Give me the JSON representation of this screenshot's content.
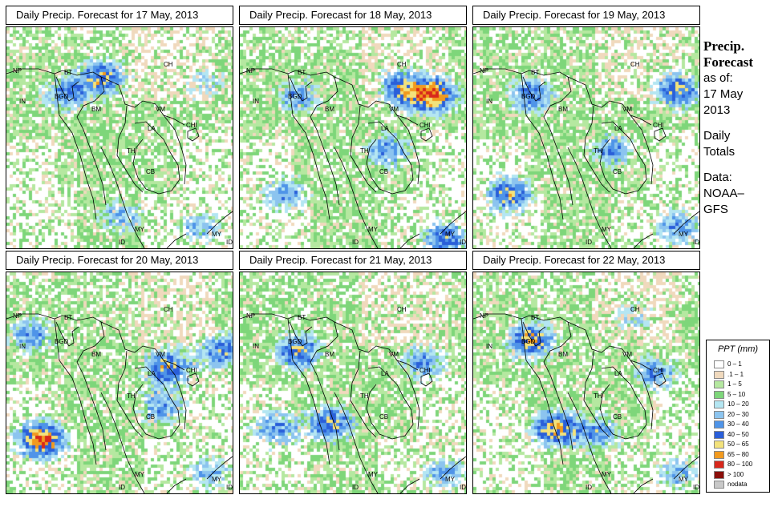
{
  "title_prefix": "Daily Precip. Forecast for",
  "panels": [
    {
      "title": "Daily Precip. Forecast for  17 May, 2013",
      "seed": 17
    },
    {
      "title": "Daily Precip. Forecast for  18 May, 2013",
      "seed": 18
    },
    {
      "title": "Daily Precip. Forecast for  19 May, 2013",
      "seed": 19
    },
    {
      "title": "Daily Precip. Forecast for  20 May, 2013",
      "seed": 20
    },
    {
      "title": "Daily Precip. Forecast for  21 May, 2013",
      "seed": 21
    },
    {
      "title": "Daily Precip. Forecast for  22 May, 2013",
      "seed": 22
    }
  ],
  "country_labels": [
    "NP",
    "BT",
    "IN",
    "BGD",
    "CH",
    "BM",
    "VM",
    "LA",
    "CHI",
    "TH",
    "CB",
    "MY",
    "ID",
    "MY",
    "ID"
  ],
  "side": {
    "heading1": "Precip.",
    "heading2": "Forecast",
    "as_of": "as of:",
    "date1": "17 May",
    "date2": "2013",
    "totals1": "Daily",
    "totals2": "Totals",
    "data1": "Data:",
    "data2": "NOAA–",
    "data3": "GFS"
  },
  "legend": {
    "title": "PPT (mm)",
    "items": [
      {
        "label": "0 – 1",
        "color": "#ffffff"
      },
      {
        "label": ".1 – 1",
        "color": "#f0d9bd"
      },
      {
        "label": "1 – 5",
        "color": "#b5e8a0"
      },
      {
        "label": "5 – 10",
        "color": "#7ed67a"
      },
      {
        "label": "10 – 20",
        "color": "#b4e6f2"
      },
      {
        "label": "20 – 30",
        "color": "#8cc4ef"
      },
      {
        "label": "30 – 40",
        "color": "#4f94e8"
      },
      {
        "label": "40 – 50",
        "color": "#2a5fd9"
      },
      {
        "label": "50 – 65",
        "color": "#f3e27c"
      },
      {
        "label": "65 – 80",
        "color": "#f29a1f"
      },
      {
        "label": "80 – 100",
        "color": "#d8281c"
      },
      {
        "label": "> 100",
        "color": "#8b0f0a"
      },
      {
        "label": "nodata",
        "color": "#c8c8c8"
      }
    ]
  }
}
